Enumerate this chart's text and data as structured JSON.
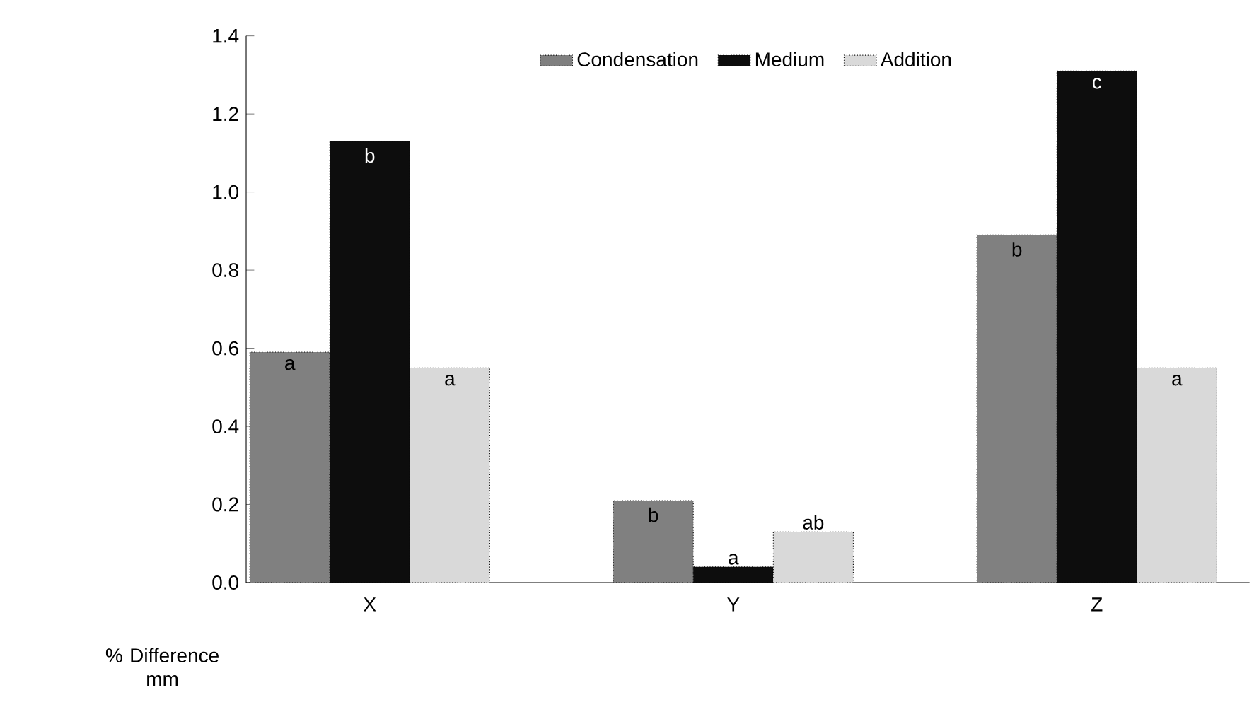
{
  "chart_data": {
    "type": "bar",
    "xlabel": "% Difference mm",
    "categories": [
      "X",
      "Y",
      "Z"
    ],
    "series": [
      {
        "name": "Condensation",
        "color": "#808080",
        "values": [
          0.59,
          0.21,
          0.89
        ],
        "value_labels": [
          "a",
          "b",
          "b"
        ]
      },
      {
        "name": "Medium",
        "color": "#0d0d0d",
        "values": [
          1.13,
          0.04,
          1.31
        ],
        "value_labels": [
          "b",
          "a",
          "c"
        ]
      },
      {
        "name": "Addition",
        "color": "#d9d9d9",
        "values": [
          0.55,
          0.13,
          0.55
        ],
        "value_labels": [
          "a",
          "ab",
          "a"
        ]
      }
    ],
    "ylim": [
      0,
      1.4
    ],
    "yticks": [
      {
        "value": 0,
        "label": "0.0"
      },
      {
        "value": 0.2,
        "label": "0.2"
      },
      {
        "value": 0.4,
        "label": "0.4"
      },
      {
        "value": 0.6,
        "label": "0.6"
      },
      {
        "value": 0.8,
        "label": "0.8"
      },
      {
        "value": 1.0,
        "label": "1.0"
      },
      {
        "value": 1.2,
        "label": "1.2"
      },
      {
        "value": 1.4,
        "label": "1.4"
      }
    ],
    "grid": false,
    "legend": "top"
  }
}
